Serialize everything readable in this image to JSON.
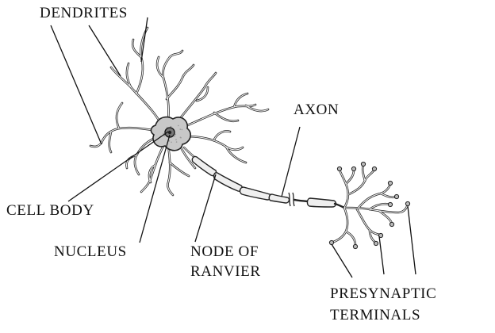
{
  "labels": {
    "dendrites": "DENDRITES",
    "axon": "AXON",
    "cell_body": "CELL BODY",
    "nucleus": "NUCLEUS",
    "node_line1": "NODE OF",
    "node_line2": "RANVIER",
    "presyn_line1": "PRESYNAPTIC",
    "presyn_line2": "TERMINALS"
  },
  "colors": {
    "ink": "#111111",
    "soma_fill": "#c8c8c8",
    "nucleus_fill": "#777777",
    "myelin_fill": "#efefef",
    "background": "#ffffff"
  }
}
